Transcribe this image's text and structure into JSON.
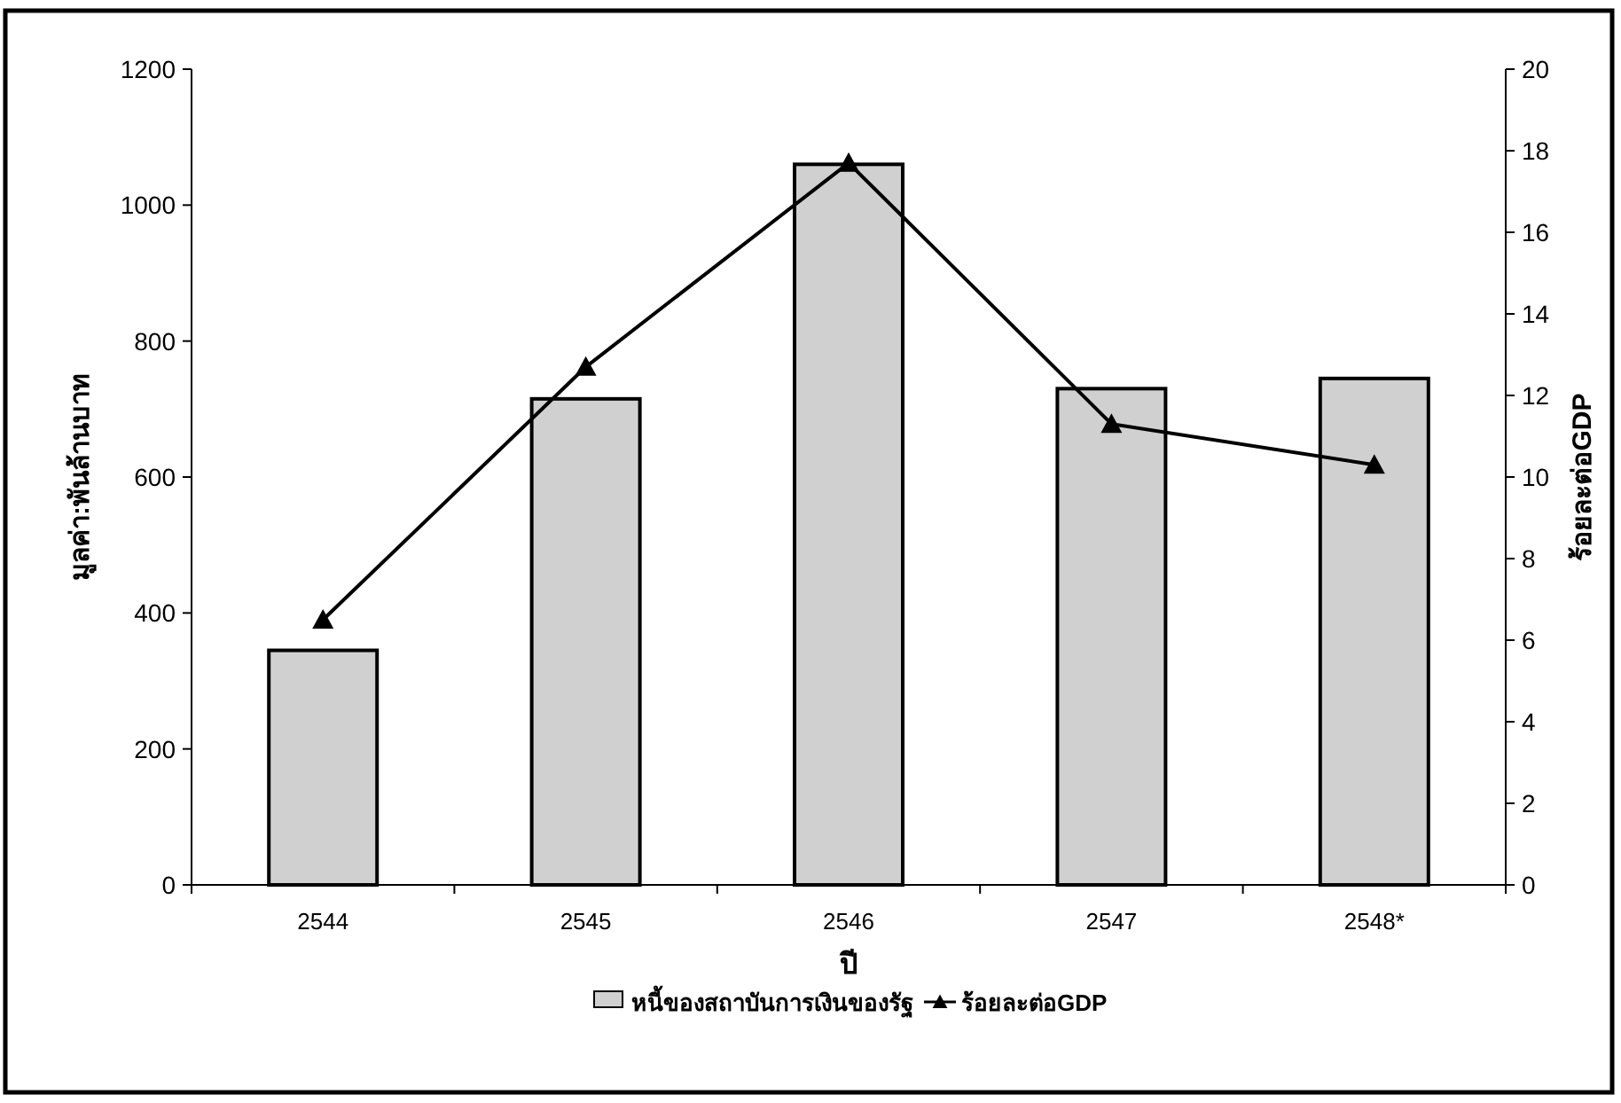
{
  "chart_data": {
    "type": "bar",
    "xlabel": "ปี",
    "ylabel": "มูลค่า:พันล้านบาท",
    "y2label": "ร้อยละต่อGDP",
    "categories": [
      "2544",
      "2545",
      "2546",
      "2547",
      "2548*"
    ],
    "series": [
      {
        "name": "หนี้ของสถาบันการเงินของรัฐ",
        "color": "#d0d0d0",
        "values": [
          345,
          715,
          1060,
          730,
          745
        ]
      },
      {
        "name": "ร้อยละต่อGDP",
        "type": "line",
        "axis": "y2",
        "color": "#000000",
        "marker": "triangle",
        "values": [
          6.5,
          12.7,
          17.7,
          11.3,
          10.3
        ]
      }
    ],
    "ylim": [
      0,
      1200
    ],
    "yticks": [
      0,
      200,
      400,
      600,
      800,
      1000,
      1200
    ],
    "y2lim": [
      0,
      20
    ],
    "y2ticks": [
      0,
      2,
      4,
      6,
      8,
      10,
      12,
      14,
      16,
      18,
      20
    ],
    "grid": false,
    "legend": "bottom"
  }
}
